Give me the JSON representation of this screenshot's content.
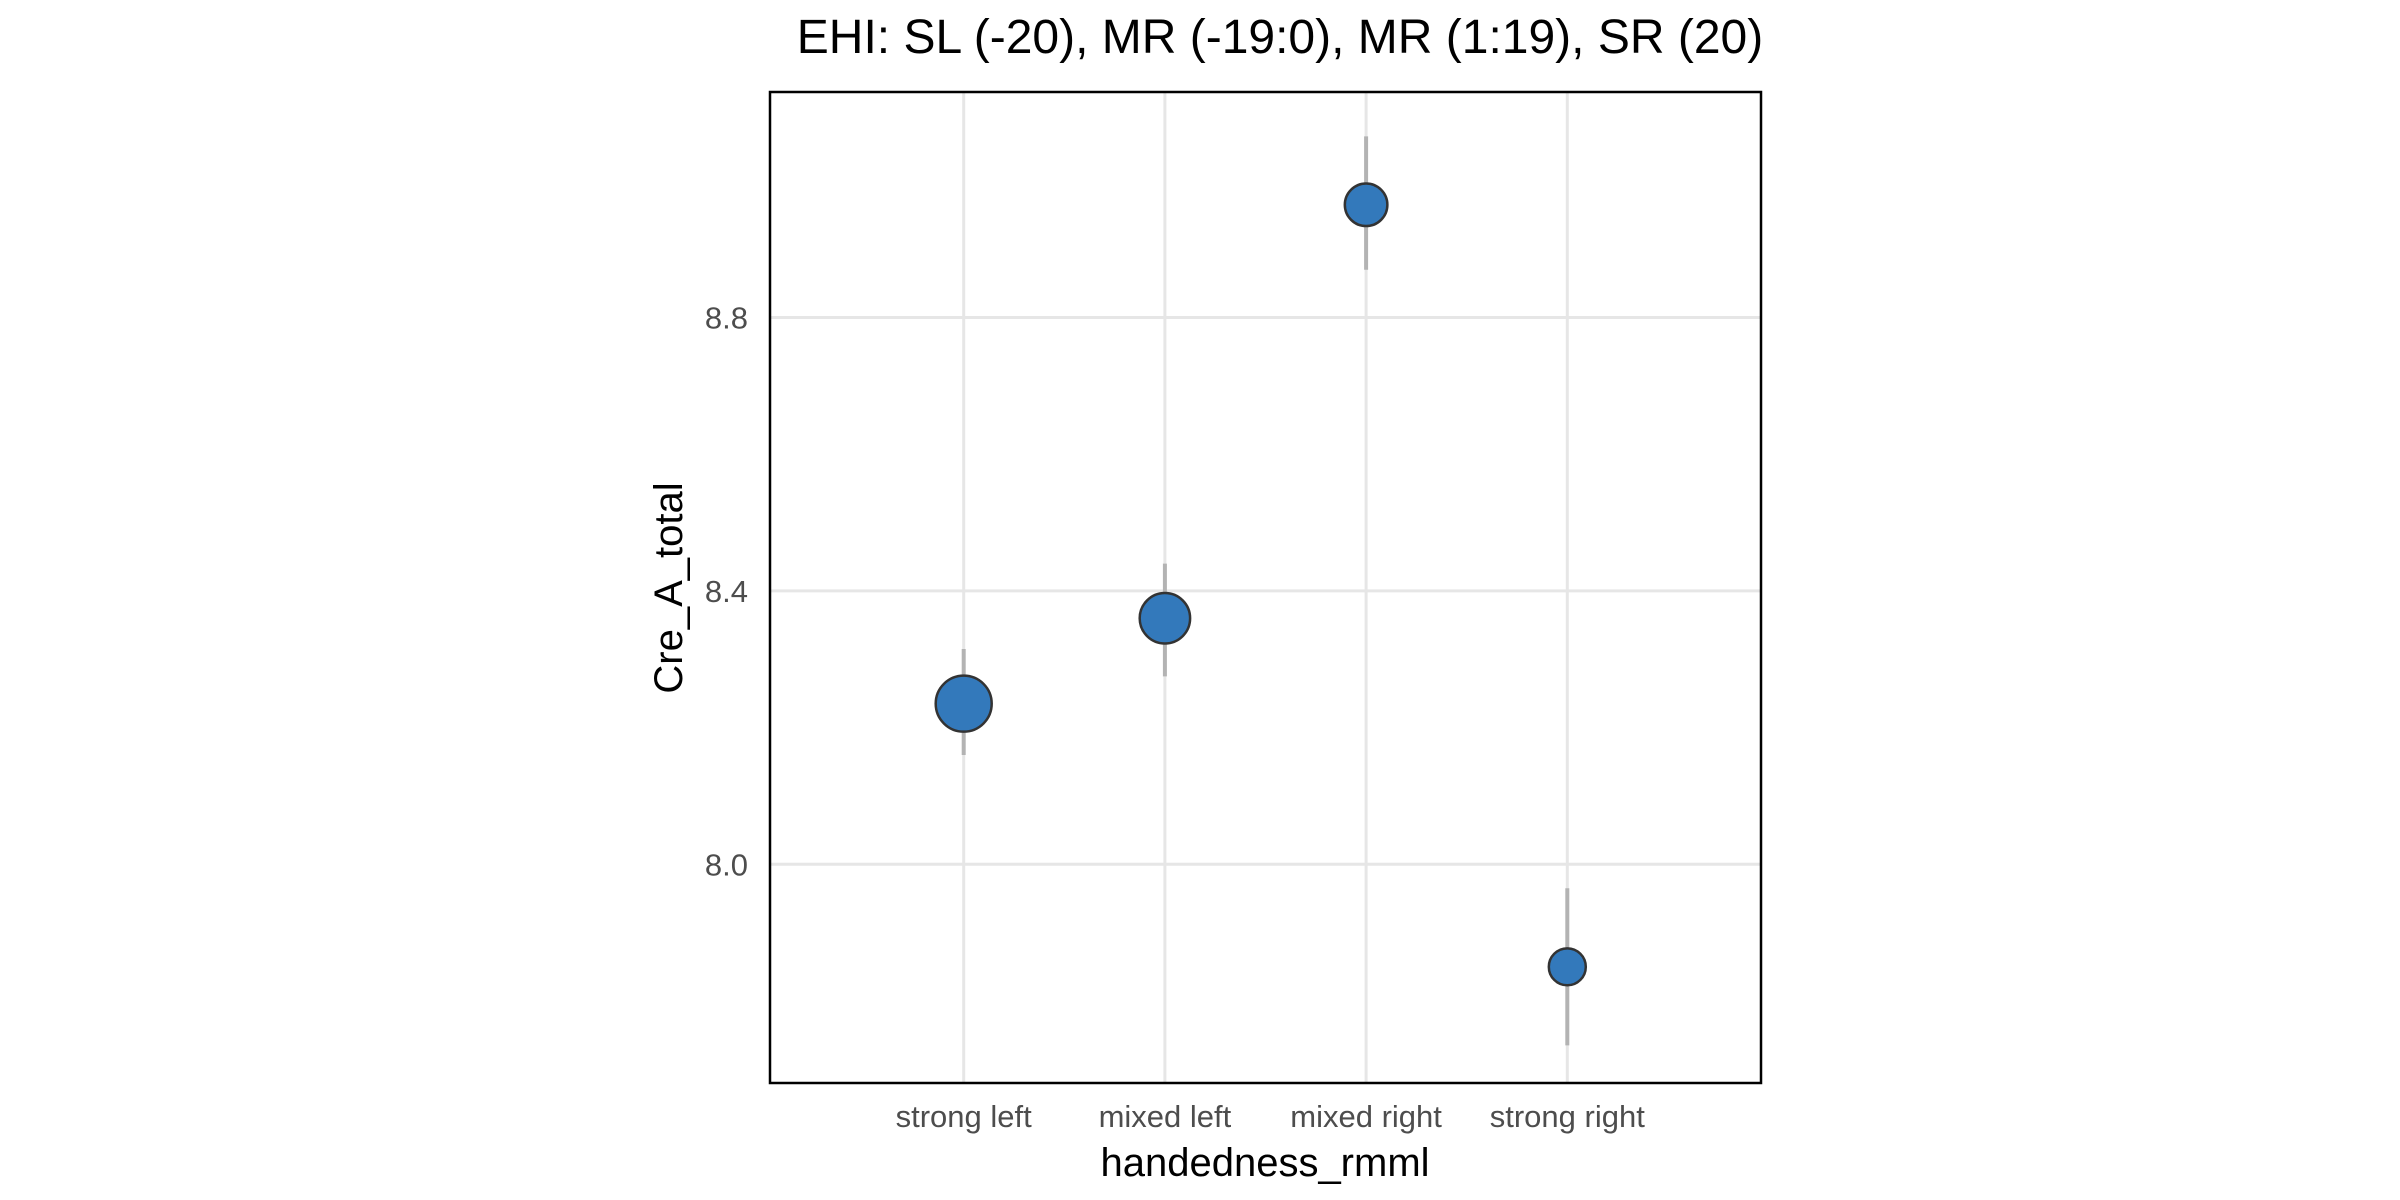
{
  "chart_data": {
    "type": "scatter",
    "title": "EHI: SL (-20), MR (-19:0), MR (1:19), SR (20)",
    "xlabel": "handedness_rmml",
    "ylabel": "Cre_A_total",
    "categories": [
      "strong left",
      "mixed left",
      "mixed right",
      "strong right"
    ],
    "yticks": [
      "8.0",
      "8.4",
      "8.8"
    ],
    "ylim": [
      7.68,
      9.13
    ],
    "grid": true,
    "legend": "none",
    "point_color": "#3379bb",
    "series": [
      {
        "values": [
          8.235,
          8.36,
          8.965,
          7.85
        ],
        "error_low": [
          8.16,
          8.275,
          8.87,
          7.735
        ],
        "error_high": [
          8.315,
          8.44,
          9.065,
          7.965
        ],
        "relative_size": [
          1.0,
          0.9,
          0.76,
          0.66
        ]
      }
    ]
  }
}
